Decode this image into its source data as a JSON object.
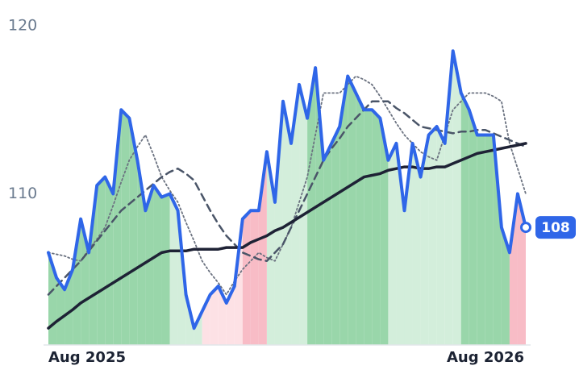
{
  "chart_data": {
    "type": "line",
    "categories": [
      "Aug 2025",
      null,
      null,
      null,
      null,
      null,
      null,
      null,
      null,
      null,
      null,
      null,
      null,
      null,
      null,
      null,
      null,
      null,
      null,
      null,
      null,
      null,
      null,
      null,
      null,
      null,
      null,
      null,
      null,
      null,
      null,
      null,
      null,
      null,
      null,
      null,
      null,
      null,
      null,
      null,
      null,
      null,
      null,
      null,
      null,
      null,
      null,
      null,
      null,
      null,
      null,
      null,
      null,
      null,
      null,
      null,
      null,
      null,
      null,
      "Aug 2026"
    ],
    "ylim": [
      101,
      120
    ],
    "yticks": [
      110,
      120
    ],
    "area_colors": [
      "#99d6aa",
      "#99d6aa",
      "#99d6aa",
      "#99d6aa",
      "#99d6aa",
      "#99d6aa",
      "#99d6aa",
      "#99d6aa",
      "#99d6aa",
      "#99d6aa",
      "#99d6aa",
      "#99d6aa",
      "#99d6aa",
      "#99d6aa",
      "#99d6aa",
      "#d3eedb",
      "#d3eedb",
      "#d3eedb",
      "#d3eedb",
      "#fde1e5",
      "#fde1e5",
      "#fde1e5",
      "#fde1e5",
      "#fde1e5",
      "#f8bcc6",
      "#f8bcc6",
      "#f8bcc6",
      "#d3eedb",
      "#d3eedb",
      "#d3eedb",
      "#d3eedb",
      "#d3eedb",
      "#99d6aa",
      "#99d6aa",
      "#99d6aa",
      "#99d6aa",
      "#99d6aa",
      "#99d6aa",
      "#99d6aa",
      "#99d6aa",
      "#99d6aa",
      "#99d6aa",
      "#d3eedb",
      "#d3eedb",
      "#d3eedb",
      "#d3eedb",
      "#d3eedb",
      "#d3eedb",
      "#d3eedb",
      "#d3eedb",
      "#d3eedb",
      "#99d6aa",
      "#99d6aa",
      "#99d6aa",
      "#99d6aa",
      "#99d6aa",
      "#99d6aa",
      "#f8bcc6",
      "#f8bcc6",
      "#f8bcc6"
    ],
    "series": [
      {
        "color": "#2f66e8",
        "style": "solid",
        "width": 4,
        "area": true,
        "values": [
          106.5,
          105,
          104.3,
          105.5,
          108.5,
          106.5,
          110.5,
          111,
          110,
          115,
          114.5,
          112,
          109,
          110.5,
          109.8,
          110,
          109,
          104,
          102,
          103,
          104,
          104.5,
          103.5,
          104.5,
          108.5,
          109,
          109,
          112.5,
          109.5,
          115.5,
          113,
          116.5,
          114.5,
          117.5,
          112,
          113,
          114,
          117,
          116,
          115,
          115,
          114.5,
          112,
          113,
          109,
          113,
          111,
          113.5,
          114,
          113,
          118.5,
          116,
          115,
          113.5,
          113.5,
          113.5,
          108,
          106.5,
          110,
          108
        ]
      },
      {
        "color": "#1e2235",
        "style": "solid",
        "width": 3.5,
        "values": [
          102,
          102.4,
          102.75,
          103.1,
          103.5,
          103.8,
          104.1,
          104.4,
          104.7,
          105,
          105.3,
          105.6,
          105.9,
          106.2,
          106.5,
          106.6,
          106.6,
          106.6,
          106.7,
          106.7,
          106.7,
          106.7,
          106.8,
          106.8,
          106.8,
          107.1,
          107.3,
          107.5,
          107.8,
          108,
          108.3,
          108.6,
          108.9,
          109.2,
          109.5,
          109.8,
          110.1,
          110.4,
          110.7,
          111,
          111.1,
          111.2,
          111.4,
          111.5,
          111.6,
          111.6,
          111.5,
          111.5,
          111.6,
          111.6,
          111.8,
          112,
          112.2,
          112.4,
          112.5,
          112.6,
          112.7,
          112.8,
          112.9,
          113
        ]
      },
      {
        "color": "#4a5568",
        "style": "dashed",
        "width": 2.5,
        "values": [
          104,
          104.5,
          105,
          105.5,
          106,
          106.6,
          107.2,
          107.8,
          108.4,
          109,
          109.4,
          109.8,
          110.2,
          110.6,
          111,
          111.3,
          111.5,
          111.2,
          110.8,
          109.9,
          109,
          108.2,
          107.5,
          107,
          106.5,
          106.3,
          106.1,
          106,
          106.5,
          107,
          108,
          109,
          110,
          111,
          112,
          112.7,
          113.3,
          114,
          114.5,
          115,
          115.5,
          115.5,
          115.5,
          115.1,
          114.8,
          114.4,
          114,
          113.9,
          113.8,
          113.7,
          113.6,
          113.7,
          113.7,
          113.8,
          113.8,
          113.6,
          113.4,
          113.2,
          113,
          112.8
        ]
      },
      {
        "color": "#6b7280",
        "style": "dotted",
        "width": 1.8,
        "values": [
          106.5,
          106.4,
          106.3,
          106.1,
          106,
          106.7,
          107.3,
          108,
          109.3,
          110.7,
          112,
          112.8,
          113.5,
          112.3,
          111,
          110.2,
          109.5,
          108.3,
          107.2,
          106,
          105.3,
          104.7,
          104,
          104.8,
          105.5,
          106,
          106.5,
          106.2,
          106,
          107,
          108,
          109.5,
          111,
          113.5,
          116,
          116,
          116,
          116.5,
          117,
          116.8,
          116.5,
          115.8,
          115,
          114.2,
          113.5,
          113,
          112.5,
          112.2,
          112,
          113.5,
          115,
          115.5,
          116,
          116,
          116,
          115.8,
          115.5,
          113,
          111.5,
          110
        ]
      }
    ]
  }
}
